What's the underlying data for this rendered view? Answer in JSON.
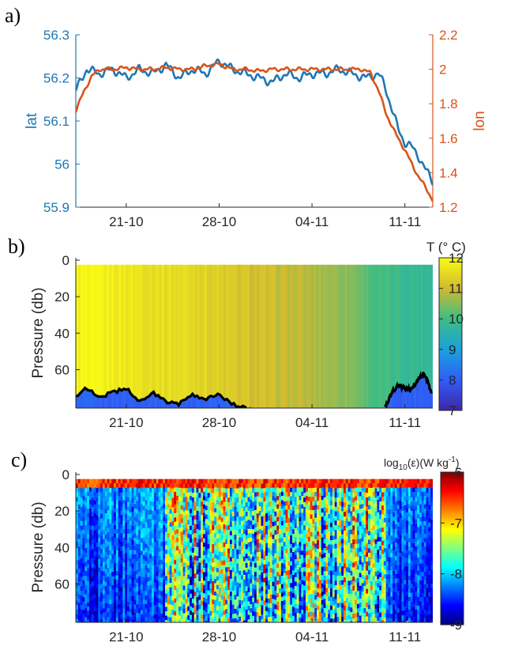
{
  "chart_data": [
    {
      "type": "line",
      "panel_label": "a)",
      "x_ticks": [
        "21-10",
        "28-10",
        "04-11",
        "11-11"
      ],
      "x_tick_days": [
        21,
        28,
        35,
        42
      ],
      "xlim_days": [
        17.2,
        44.1
      ],
      "left_axis": {
        "label": "lat",
        "ylim": [
          55.9,
          56.3
        ],
        "ticks": [
          "55.9",
          "56",
          "56.1",
          "56.2",
          "56.3"
        ],
        "color": "#1f77b4"
      },
      "right_axis": {
        "label": "lon",
        "ylim": [
          1.2,
          2.2
        ],
        "ticks": [
          "1.2",
          "1.4",
          "1.6",
          "1.8",
          "2",
          "2.2"
        ],
        "color": "#d9541a"
      },
      "series": [
        {
          "axis": "left",
          "color": "#1f77b4",
          "x": [
            17.2,
            18.0,
            19.0,
            20.0,
            21.0,
            22.0,
            23.0,
            24.0,
            25.0,
            26.0,
            27.0,
            28.0,
            29.0,
            30.0,
            31.0,
            32.0,
            33.0,
            34.0,
            35.0,
            36.0,
            37.0,
            38.0,
            39.0,
            40.0,
            40.5,
            41.0,
            41.5,
            42.0,
            42.5,
            43.0,
            43.5,
            44.1
          ],
          "y": [
            56.17,
            56.22,
            56.21,
            56.22,
            56.2,
            56.22,
            56.21,
            56.23,
            56.2,
            56.22,
            56.21,
            56.24,
            56.22,
            56.21,
            56.2,
            56.19,
            56.21,
            56.2,
            56.21,
            56.21,
            56.22,
            56.21,
            56.2,
            56.21,
            56.18,
            56.13,
            56.08,
            56.05,
            56.04,
            56.02,
            55.99,
            55.96
          ]
        },
        {
          "axis": "right",
          "color": "#d9541a",
          "x": [
            17.2,
            17.8,
            18.4,
            19.0,
            20.0,
            21.0,
            22.0,
            23.0,
            24.0,
            25.0,
            26.0,
            27.0,
            28.0,
            29.0,
            30.0,
            31.0,
            32.0,
            33.0,
            34.0,
            35.0,
            36.0,
            37.0,
            38.0,
            38.7,
            39.4,
            40.0,
            40.6,
            41.2,
            41.8,
            42.4,
            43.0,
            43.6,
            44.1
          ],
          "y": [
            1.76,
            1.87,
            1.96,
            2.0,
            2.0,
            2.01,
            2.0,
            2.0,
            2.01,
            2.0,
            2.0,
            2.02,
            2.03,
            2.0,
            2.0,
            1.99,
            2.0,
            2.0,
            2.0,
            2.0,
            2.0,
            2.0,
            2.0,
            2.0,
            1.98,
            1.88,
            1.74,
            1.64,
            1.56,
            1.47,
            1.38,
            1.31,
            1.24
          ]
        }
      ]
    },
    {
      "type": "heatmap",
      "panel_label": "b)",
      "x_ticks": [
        "21-10",
        "28-10",
        "04-11",
        "11-11"
      ],
      "ylabel": "Pressure (db)",
      "y_ticks": [
        "0",
        "20",
        "40",
        "60"
      ],
      "ylim": [
        0,
        75
      ],
      "colorbar": {
        "title": "T (° C)",
        "ticks": [
          "7",
          "8",
          "9",
          "10",
          "11",
          "12"
        ],
        "range": [
          7,
          12
        ]
      },
      "surface_temperature_by_day": {
        "days": [
          17.2,
          20,
          23,
          26,
          29,
          32,
          35,
          38,
          40,
          42,
          44.1
        ],
        "values": [
          11.9,
          11.8,
          11.6,
          11.5,
          11.2,
          11.0,
          10.8,
          10.5,
          10.0,
          9.9,
          9.8
        ]
      },
      "mixed_layer_depth": {
        "days": [
          17.2,
          18,
          19,
          20,
          21,
          22,
          23,
          24,
          25,
          26,
          27,
          28,
          29,
          30,
          31
        ],
        "depth": [
          60,
          56,
          60,
          58,
          56,
          62,
          58,
          62,
          63,
          59,
          61,
          59,
          63,
          65,
          66
        ]
      },
      "mixed_layer_depth_late": {
        "days": [
          40.5,
          41,
          41.5,
          42,
          42.5,
          43,
          43.5,
          44
        ],
        "depth": [
          65,
          58,
          55,
          56,
          57,
          52,
          50,
          58
        ]
      }
    },
    {
      "type": "heatmap",
      "panel_label": "c)",
      "x_ticks": [
        "21-10",
        "28-10",
        "04-11",
        "11-11"
      ],
      "ylabel": "Pressure (db)",
      "y_ticks": [
        "0",
        "20",
        "40",
        "60"
      ],
      "ylim": [
        0,
        75
      ],
      "colorbar": {
        "title": "log10(ε)(W kg-1)",
        "title_main": "log",
        "title_sub": "10",
        "title_rest": "(ε)(W kg",
        "title_sup": "-1",
        "title_end": ")",
        "ticks": [
          "-6",
          "-7",
          "-8",
          "-9"
        ],
        "range": [
          -9,
          -6
        ]
      }
    }
  ]
}
